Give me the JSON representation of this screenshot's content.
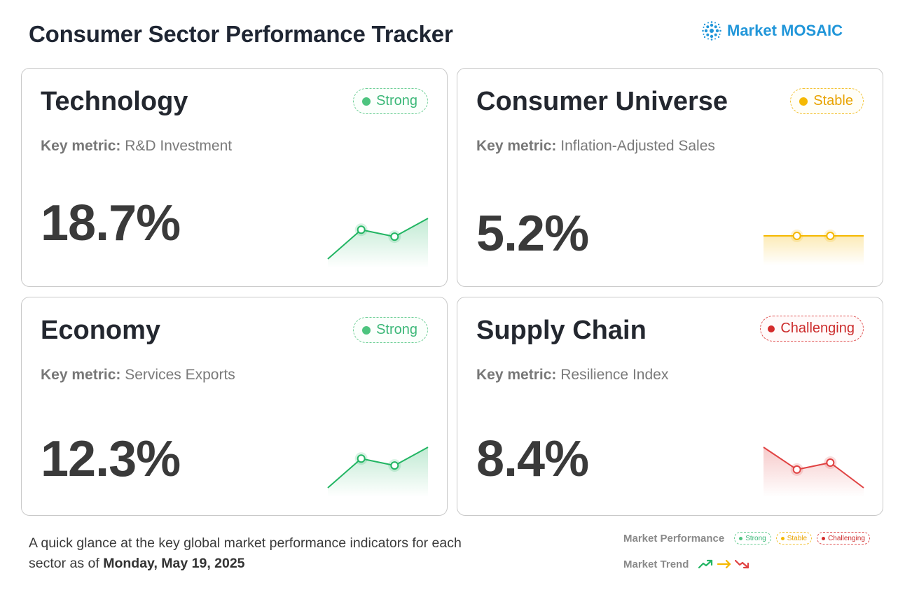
{
  "header": {
    "title": "Consumer Sector Performance Tracker",
    "brand": {
      "icon": "dot-cluster-logo-icon",
      "name": "Market MOSAIC",
      "color": "#2196d9"
    }
  },
  "colors": {
    "strong": "#3cb878",
    "stable": "#f5b800",
    "challenging": "#d42b2b"
  },
  "cards": [
    {
      "title": "Technology",
      "status": "Strong",
      "metric_prefix": "Key metric:",
      "metric": "R&D Investment",
      "value": "18.7%"
    },
    {
      "title": "Consumer Universe",
      "status": "Stable",
      "metric_prefix": "Key metric:",
      "metric": "Inflation-Adjusted Sales",
      "value": "5.2%"
    },
    {
      "title": "Economy",
      "status": "Strong",
      "metric_prefix": "Key metric:",
      "metric": "Services Exports",
      "value": "12.3%"
    },
    {
      "title": "Supply Chain",
      "status": "Challenging",
      "metric_prefix": "Key metric:",
      "metric": "Resilience Index",
      "value": "8.4%"
    }
  ],
  "chart_data": [
    {
      "type": "line",
      "title": "Technology",
      "trend": "up",
      "color": "#22b563",
      "x": [
        0,
        1,
        2,
        3
      ],
      "values": [
        0,
        0.72,
        0.55,
        1.0
      ],
      "markers": [
        1,
        2
      ]
    },
    {
      "type": "line",
      "title": "Consumer Universe",
      "trend": "flat",
      "color": "#f5b800",
      "x": [
        0,
        1,
        2,
        3
      ],
      "values": [
        0.5,
        0.5,
        0.5,
        0.5
      ],
      "markers": [
        1,
        2
      ]
    },
    {
      "type": "line",
      "title": "Economy",
      "trend": "up",
      "color": "#22b563",
      "x": [
        0,
        1,
        2,
        3
      ],
      "values": [
        0,
        0.72,
        0.55,
        1.0
      ],
      "markers": [
        1,
        2
      ]
    },
    {
      "type": "line",
      "title": "Supply Chain",
      "trend": "down",
      "color": "#e04343",
      "x": [
        0,
        1,
        2,
        3
      ],
      "values": [
        1.0,
        0.45,
        0.62,
        0
      ],
      "markers": [
        1,
        2
      ]
    }
  ],
  "footer": {
    "note": "A quick glance at the key global market performance indicators for each sector as of ",
    "date": "Monday, May 19, 2025"
  },
  "legend": {
    "performance_label": "Market Performance",
    "performance_items": [
      "Strong",
      "Stable",
      "Challenging"
    ],
    "trend_label": "Market Trend",
    "trend_icons": [
      "trend-up-icon",
      "trend-flat-icon",
      "trend-down-icon"
    ]
  }
}
